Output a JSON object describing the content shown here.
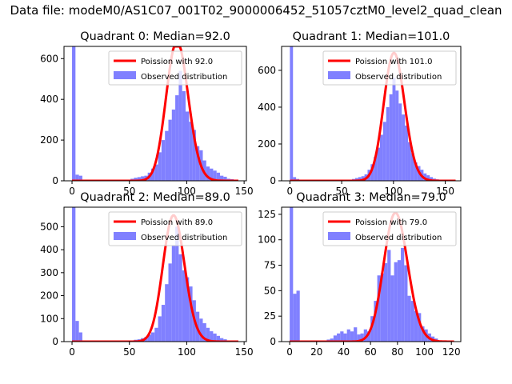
{
  "suptitle": "Data file: modeM0/AS1C07_001T02_9000006452_51057cztM0_level2_quad_clean",
  "colors": {
    "observed": "#8080ff",
    "poisson": "#ff0000"
  },
  "chart_data": [
    {
      "type": "bar",
      "title": "Quadrant 0: Median=92.0",
      "xlim": [
        -7,
        152
      ],
      "ylim": [
        0,
        660
      ],
      "xticks": [
        0,
        50,
        100,
        150
      ],
      "yticks": [
        0,
        200,
        400,
        600
      ],
      "bin_width": 3,
      "legend": [
        "Poission with 92.0",
        "Observed distribution"
      ],
      "poisson_mean": 92.0,
      "poisson_scale": 16500,
      "poisson_range": [
        0,
        145
      ],
      "hist": [
        [
          0,
          660
        ],
        [
          3,
          30
        ],
        [
          6,
          25
        ],
        [
          51,
          10
        ],
        [
          54,
          15
        ],
        [
          57,
          18
        ],
        [
          60,
          22
        ],
        [
          63,
          25
        ],
        [
          66,
          40
        ],
        [
          69,
          60
        ],
        [
          72,
          80
        ],
        [
          75,
          140
        ],
        [
          78,
          200
        ],
        [
          81,
          245
        ],
        [
          84,
          300
        ],
        [
          87,
          350
        ],
        [
          90,
          420
        ],
        [
          93,
          540
        ],
        [
          96,
          440
        ],
        [
          99,
          340
        ],
        [
          102,
          290
        ],
        [
          105,
          250
        ],
        [
          108,
          170
        ],
        [
          111,
          150
        ],
        [
          114,
          100
        ],
        [
          117,
          70
        ],
        [
          120,
          60
        ],
        [
          123,
          50
        ],
        [
          126,
          40
        ],
        [
          129,
          25
        ],
        [
          132,
          20
        ],
        [
          135,
          10
        ],
        [
          138,
          8
        ],
        [
          141,
          5
        ]
      ]
    },
    {
      "type": "bar",
      "title": "Quadrant 1: Median=101.0",
      "xlim": [
        -8,
        165
      ],
      "ylim": [
        0,
        730
      ],
      "xticks": [
        0,
        50,
        100,
        150
      ],
      "yticks": [
        0,
        200,
        400,
        600
      ],
      "bin_width": 3,
      "legend": [
        "Poission with 101.0",
        "Observed distribution"
      ],
      "poisson_mean": 101.0,
      "poisson_scale": 17500,
      "poisson_range": [
        0,
        160
      ],
      "hist": [
        [
          0,
          730
        ],
        [
          3,
          20
        ],
        [
          6,
          10
        ],
        [
          60,
          10
        ],
        [
          63,
          15
        ],
        [
          66,
          20
        ],
        [
          69,
          25
        ],
        [
          72,
          35
        ],
        [
          75,
          60
        ],
        [
          78,
          90
        ],
        [
          81,
          130
        ],
        [
          84,
          180
        ],
        [
          87,
          250
        ],
        [
          90,
          320
        ],
        [
          93,
          400
        ],
        [
          96,
          470
        ],
        [
          99,
          560
        ],
        [
          102,
          490
        ],
        [
          105,
          420
        ],
        [
          108,
          360
        ],
        [
          111,
          300
        ],
        [
          114,
          210
        ],
        [
          117,
          150
        ],
        [
          120,
          100
        ],
        [
          123,
          80
        ],
        [
          126,
          60
        ],
        [
          129,
          40
        ],
        [
          132,
          30
        ],
        [
          135,
          20
        ],
        [
          138,
          12
        ],
        [
          141,
          8
        ],
        [
          144,
          5
        ],
        [
          147,
          3
        ]
      ]
    },
    {
      "type": "bar",
      "title": "Quadrant 2: Median=89.0",
      "xlim": [
        -7,
        152
      ],
      "ylim": [
        0,
        585
      ],
      "xticks": [
        0,
        50,
        100,
        150
      ],
      "yticks": [
        0,
        100,
        200,
        300,
        400,
        500
      ],
      "bin_width": 3,
      "legend": [
        "Poission with 89.0",
        "Observed distribution"
      ],
      "poisson_mean": 89.0,
      "poisson_scale": 13000,
      "poisson_range": [
        0,
        145
      ],
      "hist": [
        [
          0,
          585
        ],
        [
          3,
          90
        ],
        [
          6,
          40
        ],
        [
          51,
          5
        ],
        [
          54,
          8
        ],
        [
          57,
          10
        ],
        [
          60,
          15
        ],
        [
          63,
          20
        ],
        [
          66,
          30
        ],
        [
          69,
          40
        ],
        [
          72,
          60
        ],
        [
          75,
          110
        ],
        [
          78,
          160
        ],
        [
          81,
          250
        ],
        [
          84,
          340
        ],
        [
          87,
          420
        ],
        [
          90,
          500
        ],
        [
          93,
          380
        ],
        [
          96,
          310
        ],
        [
          99,
          280
        ],
        [
          102,
          240
        ],
        [
          105,
          180
        ],
        [
          108,
          130
        ],
        [
          111,
          100
        ],
        [
          114,
          80
        ],
        [
          117,
          60
        ],
        [
          120,
          45
        ],
        [
          123,
          35
        ],
        [
          126,
          25
        ],
        [
          129,
          15
        ],
        [
          132,
          10
        ],
        [
          135,
          5
        ]
      ]
    },
    {
      "type": "bar",
      "title": "Quadrant 3: Median=79.0",
      "xlim": [
        -6,
        127
      ],
      "ylim": [
        0,
        132
      ],
      "xticks": [
        0,
        20,
        40,
        60,
        80,
        100,
        120
      ],
      "yticks": [
        0,
        25,
        50,
        75,
        100,
        125
      ],
      "bin_width": 2.5,
      "legend": [
        "Poission with 79.0",
        "Observed distribution"
      ],
      "poisson_mean": 79.0,
      "poisson_scale": 2820,
      "poisson_range": [
        0,
        122
      ],
      "hist": [
        [
          0,
          132
        ],
        [
          2.5,
          47
        ],
        [
          5,
          50
        ],
        [
          27.5,
          2
        ],
        [
          30,
          3
        ],
        [
          32.5,
          6
        ],
        [
          35,
          8
        ],
        [
          37.5,
          10
        ],
        [
          40,
          8
        ],
        [
          42.5,
          12
        ],
        [
          45,
          10
        ],
        [
          47.5,
          14
        ],
        [
          50,
          7
        ],
        [
          52.5,
          8
        ],
        [
          55,
          12
        ],
        [
          57.5,
          10
        ],
        [
          60,
          25
        ],
        [
          62.5,
          40
        ],
        [
          65,
          65
        ],
        [
          67.5,
          67
        ],
        [
          70,
          77
        ],
        [
          72.5,
          90
        ],
        [
          75,
          65
        ],
        [
          77.5,
          78
        ],
        [
          80,
          80
        ],
        [
          82.5,
          92
        ],
        [
          85,
          75
        ],
        [
          87.5,
          45
        ],
        [
          90,
          40
        ],
        [
          92.5,
          30
        ],
        [
          95,
          28
        ],
        [
          97.5,
          15
        ],
        [
          100,
          12
        ],
        [
          102.5,
          8
        ],
        [
          105,
          5
        ],
        [
          107.5,
          3
        ]
      ]
    }
  ]
}
